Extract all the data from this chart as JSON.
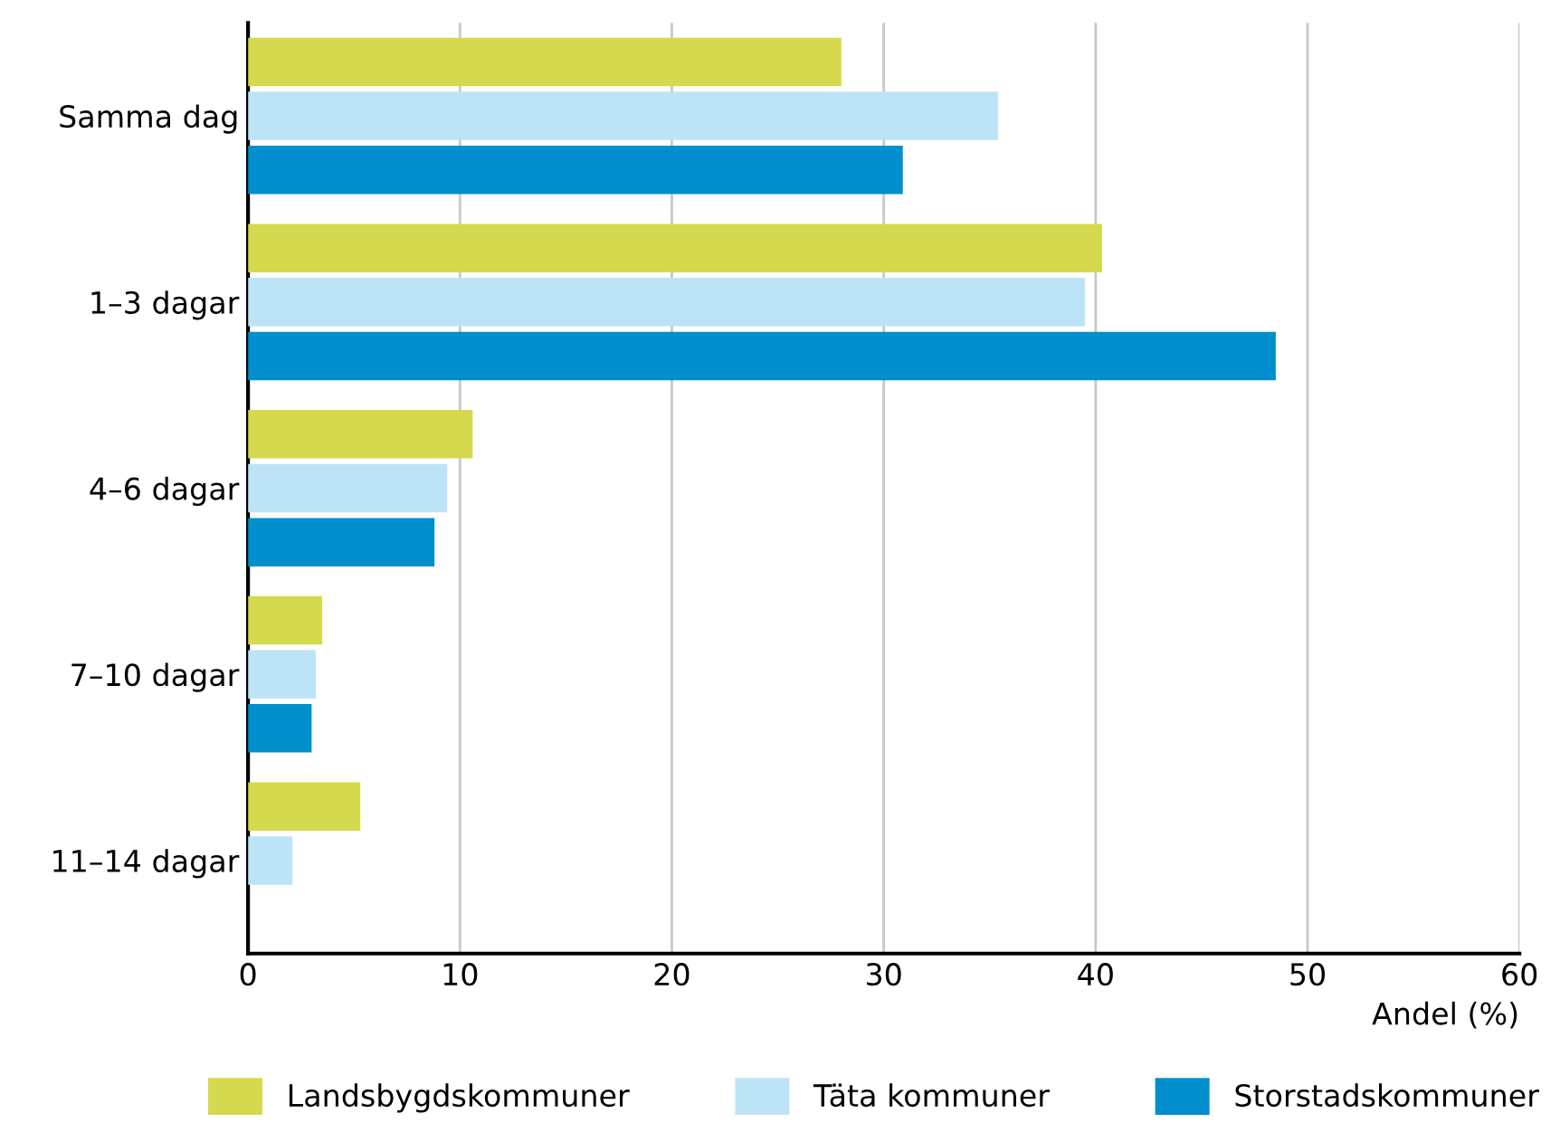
{
  "chart_data": {
    "type": "bar",
    "orientation": "horizontal",
    "xlabel": "Andel (%)",
    "categories": [
      "Samma dag",
      "1–3 dagar",
      "4–6 dagar",
      "7–10 dagar",
      "11–14 dagar"
    ],
    "series": [
      {
        "name": "Landsbygdskommuner",
        "color": "#d4d94d",
        "values": [
          28.0,
          40.3,
          10.6,
          3.5,
          5.3
        ]
      },
      {
        "name": "Täta kommuner",
        "color": "#bde4f6",
        "values": [
          35.4,
          39.5,
          9.4,
          3.2,
          2.1
        ]
      },
      {
        "name": "Storstadskommuner",
        "color": "#008fcc",
        "values": [
          30.9,
          48.5,
          8.8,
          3.0,
          null
        ]
      }
    ],
    "xlim": [
      0,
      60
    ],
    "xticks": [
      0,
      10,
      20,
      30,
      40,
      50,
      60
    ],
    "grid": "x",
    "legend": "bottom"
  }
}
